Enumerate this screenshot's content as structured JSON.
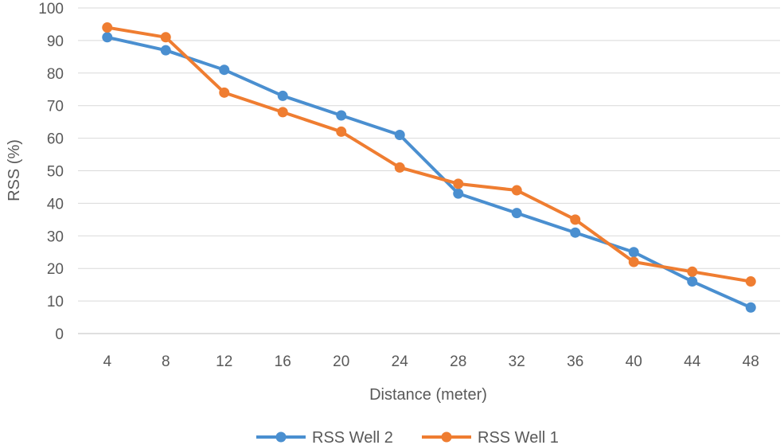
{
  "chart_data": {
    "type": "line",
    "title": "",
    "xlabel": "Distance (meter)",
    "ylabel": "RSS (%)",
    "ylim": [
      0,
      100
    ],
    "yticks": [
      "0",
      "10",
      "20",
      "30",
      "40",
      "50",
      "60",
      "70",
      "80",
      "90",
      "100"
    ],
    "categories": [
      "4",
      "8",
      "12",
      "16",
      "20",
      "24",
      "28",
      "32",
      "36",
      "40",
      "44",
      "48"
    ],
    "grid": true,
    "legend_position": "bottom",
    "series": [
      {
        "name": "RSS Well 2",
        "color": "#4a8fd0",
        "values": [
          91,
          87,
          81,
          73,
          67,
          61,
          43,
          37,
          31,
          25,
          16,
          8
        ]
      },
      {
        "name": "RSS Well 1",
        "color": "#ef7d31",
        "values": [
          94,
          91,
          74,
          68,
          62,
          51,
          46,
          44,
          35,
          22,
          19,
          16
        ]
      }
    ]
  }
}
